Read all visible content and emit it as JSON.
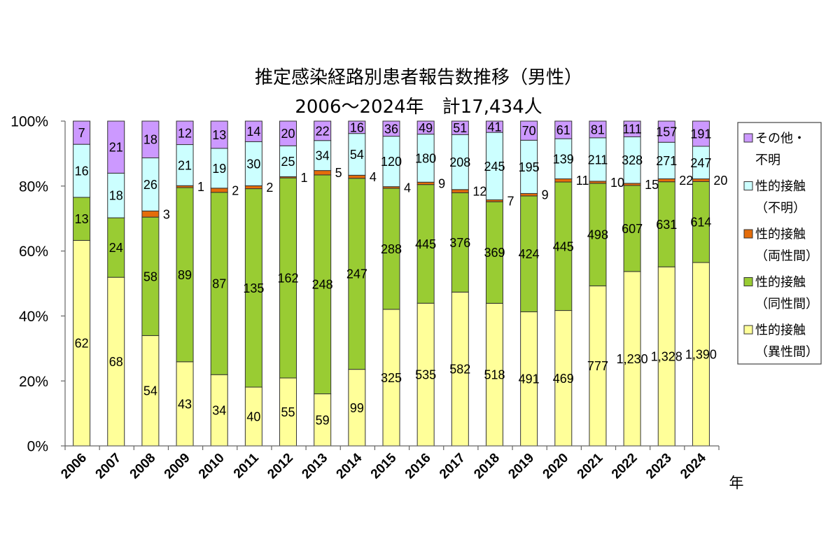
{
  "chart_data": {
    "type": "bar",
    "stacked": "percent",
    "title": "推定感染経路別患者報告数推移（男性）",
    "subtitle": "2006～2024年　計17,434人",
    "xlabel": "年",
    "ylabel": "",
    "ylim": [
      0,
      100
    ],
    "ytick_labels": [
      "0%",
      "20%",
      "40%",
      "60%",
      "80%",
      "100%"
    ],
    "grid": false,
    "legend_position": "right",
    "categories": [
      "2006",
      "2007",
      "2008",
      "2009",
      "2010",
      "2011",
      "2012",
      "2013",
      "2014",
      "2015",
      "2016",
      "2017",
      "2018",
      "2019",
      "2020",
      "2021",
      "2022",
      "2023",
      "2024"
    ],
    "series": [
      {
        "name": "性的接触（異性間）",
        "color": "#FFFF99",
        "values": [
          62,
          68,
          54,
          43,
          34,
          40,
          55,
          59,
          99,
          325,
          535,
          582,
          518,
          491,
          469,
          777,
          1230,
          1328,
          1390
        ]
      },
      {
        "name": "性的接触（同性間）",
        "color": "#99CC33",
        "values": [
          13,
          24,
          58,
          89,
          87,
          135,
          162,
          248,
          247,
          288,
          445,
          376,
          369,
          424,
          445,
          498,
          607,
          631,
          614
        ]
      },
      {
        "name": "性的接触（両性間）",
        "color": "#E46C0A",
        "values": [
          0,
          0,
          3,
          1,
          2,
          2,
          1,
          5,
          4,
          4,
          9,
          12,
          7,
          9,
          11,
          10,
          15,
          22,
          20
        ]
      },
      {
        "name": "性的接触（不明）",
        "color": "#CCFFFF",
        "values": [
          16,
          18,
          26,
          21,
          19,
          30,
          25,
          34,
          54,
          120,
          180,
          208,
          245,
          195,
          139,
          211,
          328,
          271,
          247
        ]
      },
      {
        "name": "その他・不明",
        "color": "#CC99FF",
        "values": [
          7,
          21,
          18,
          12,
          13,
          14,
          20,
          22,
          16,
          36,
          49,
          51,
          41,
          70,
          61,
          81,
          111,
          157,
          191
        ]
      }
    ]
  }
}
